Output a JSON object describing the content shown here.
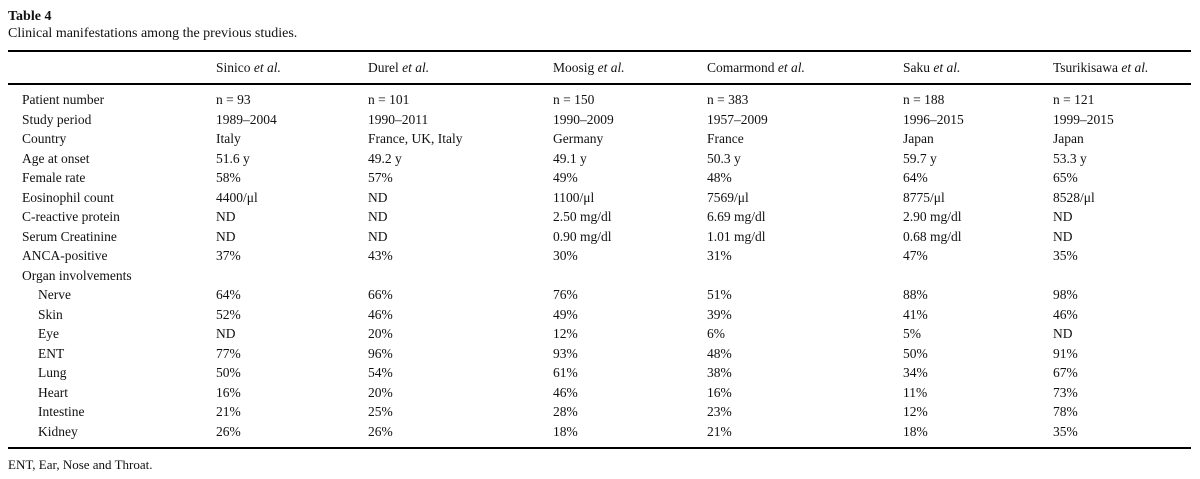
{
  "caption": {
    "label": "Table 4",
    "text": "Clinical manifestations among the previous studies."
  },
  "footnote": "ENT, Ear, Nose and Throat.",
  "colors": {
    "text": "#111111",
    "rule": "#000000",
    "background": "#ffffff"
  },
  "table": {
    "columns": [
      {
        "name": "Sinico",
        "etal": "et al."
      },
      {
        "name": "Durel",
        "etal": "et al."
      },
      {
        "name": "Moosig",
        "etal": "et al."
      },
      {
        "name": "Comarmond",
        "etal": "et al."
      },
      {
        "name": "Saku",
        "etal": "et al."
      },
      {
        "name": "Tsurikisawa",
        "etal": "et al."
      }
    ],
    "rows": [
      {
        "label": "Patient number",
        "indent": false,
        "values": [
          "n = 93",
          "n = 101",
          "n = 150",
          "n = 383",
          "n = 188",
          "n = 121"
        ]
      },
      {
        "label": "Study period",
        "indent": false,
        "values": [
          "1989–2004",
          "1990–2011",
          "1990–2009",
          "1957–2009",
          "1996–2015",
          "1999–2015"
        ]
      },
      {
        "label": "Country",
        "indent": false,
        "values": [
          "Italy",
          "France, UK, Italy",
          "Germany",
          "France",
          "Japan",
          "Japan"
        ]
      },
      {
        "label": "Age at onset",
        "indent": false,
        "values": [
          "51.6 y",
          "49.2 y",
          "49.1 y",
          "50.3 y",
          "59.7 y",
          "53.3 y"
        ]
      },
      {
        "label": "Female rate",
        "indent": false,
        "values": [
          "58%",
          "57%",
          "49%",
          "48%",
          "64%",
          "65%"
        ]
      },
      {
        "label": "Eosinophil count",
        "indent": false,
        "values": [
          "4400/μl",
          "ND",
          "1100/μl",
          "7569/μl",
          "8775/μl",
          "8528/μl"
        ]
      },
      {
        "label": "C-reactive protein",
        "indent": false,
        "values": [
          "ND",
          "ND",
          "2.50 mg/dl",
          "6.69 mg/dl",
          "2.90 mg/dl",
          "ND"
        ]
      },
      {
        "label": "Serum Creatinine",
        "indent": false,
        "values": [
          "ND",
          "ND",
          "0.90 mg/dl",
          "1.01 mg/dl",
          "0.68 mg/dl",
          "ND"
        ]
      },
      {
        "label": "ANCA-positive",
        "indent": false,
        "values": [
          "37%",
          "43%",
          "30%",
          "31%",
          "47%",
          "35%"
        ]
      },
      {
        "label": "Organ involvements",
        "indent": false,
        "values": [
          "",
          "",
          "",
          "",
          "",
          ""
        ]
      },
      {
        "label": "Nerve",
        "indent": true,
        "values": [
          "64%",
          "66%",
          "76%",
          "51%",
          "88%",
          "98%"
        ]
      },
      {
        "label": "Skin",
        "indent": true,
        "values": [
          "52%",
          "46%",
          "49%",
          "39%",
          "41%",
          "46%"
        ]
      },
      {
        "label": "Eye",
        "indent": true,
        "values": [
          "ND",
          "20%",
          "12%",
          "6%",
          "5%",
          "ND"
        ]
      },
      {
        "label": "ENT",
        "indent": true,
        "values": [
          "77%",
          "96%",
          "93%",
          "48%",
          "50%",
          "91%"
        ]
      },
      {
        "label": "Lung",
        "indent": true,
        "values": [
          "50%",
          "54%",
          "61%",
          "38%",
          "34%",
          "67%"
        ]
      },
      {
        "label": "Heart",
        "indent": true,
        "values": [
          "16%",
          "20%",
          "46%",
          "16%",
          "11%",
          "73%"
        ]
      },
      {
        "label": "Intestine",
        "indent": true,
        "values": [
          "21%",
          "25%",
          "28%",
          "23%",
          "12%",
          "78%"
        ]
      },
      {
        "label": "Kidney",
        "indent": true,
        "values": [
          "26%",
          "26%",
          "18%",
          "21%",
          "18%",
          "35%"
        ]
      }
    ]
  },
  "chart_data": {
    "type": "table",
    "title": "Table 4. Clinical manifestations among the previous studies.",
    "columns": [
      "",
      "Sinico et al.",
      "Durel et al.",
      "Moosig et al.",
      "Comarmond et al.",
      "Saku et al.",
      "Tsurikisawa et al."
    ],
    "rows": [
      [
        "Patient number",
        "n = 93",
        "n = 101",
        "n = 150",
        "n = 383",
        "n = 188",
        "n = 121"
      ],
      [
        "Study period",
        "1989–2004",
        "1990–2011",
        "1990–2009",
        "1957–2009",
        "1996–2015",
        "1999–2015"
      ],
      [
        "Country",
        "Italy",
        "France, UK, Italy",
        "Germany",
        "France",
        "Japan",
        "Japan"
      ],
      [
        "Age at onset",
        "51.6 y",
        "49.2 y",
        "49.1 y",
        "50.3 y",
        "59.7 y",
        "53.3 y"
      ],
      [
        "Female rate",
        "58%",
        "57%",
        "49%",
        "48%",
        "64%",
        "65%"
      ],
      [
        "Eosinophil count",
        "4400/μl",
        "ND",
        "1100/μl",
        "7569/μl",
        "8775/μl",
        "8528/μl"
      ],
      [
        "C-reactive protein",
        "ND",
        "ND",
        "2.50 mg/dl",
        "6.69 mg/dl",
        "2.90 mg/dl",
        "ND"
      ],
      [
        "Serum Creatinine",
        "ND",
        "ND",
        "0.90 mg/dl",
        "1.01 mg/dl",
        "0.68 mg/dl",
        "ND"
      ],
      [
        "ANCA-positive",
        "37%",
        "43%",
        "30%",
        "31%",
        "47%",
        "35%"
      ],
      [
        "Organ involvements",
        "",
        "",
        "",
        "",
        "",
        ""
      ],
      [
        "Nerve",
        "64%",
        "66%",
        "76%",
        "51%",
        "88%",
        "98%"
      ],
      [
        "Skin",
        "52%",
        "46%",
        "49%",
        "39%",
        "41%",
        "46%"
      ],
      [
        "Eye",
        "ND",
        "20%",
        "12%",
        "6%",
        "5%",
        "ND"
      ],
      [
        "ENT",
        "77%",
        "96%",
        "93%",
        "48%",
        "50%",
        "91%"
      ],
      [
        "Lung",
        "50%",
        "54%",
        "61%",
        "38%",
        "34%",
        "67%"
      ],
      [
        "Heart",
        "16%",
        "20%",
        "46%",
        "16%",
        "11%",
        "73%"
      ],
      [
        "Intestine",
        "21%",
        "25%",
        "28%",
        "23%",
        "12%",
        "78%"
      ],
      [
        "Kidney",
        "26%",
        "26%",
        "18%",
        "21%",
        "18%",
        "35%"
      ]
    ],
    "footnote": "ENT, Ear, Nose and Throat."
  }
}
